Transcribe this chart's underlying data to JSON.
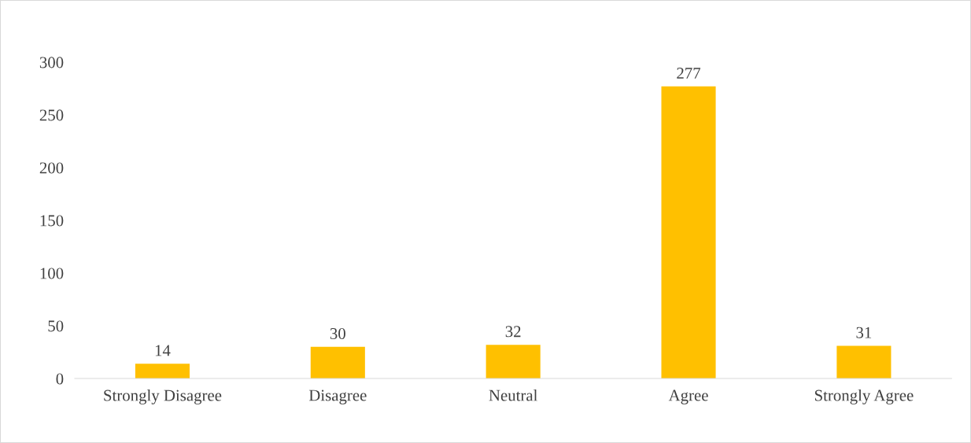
{
  "chart_data": {
    "type": "bar",
    "categories": [
      "Strongly Disagree",
      "Disagree",
      "Neutral",
      "Agree",
      "Strongly Agree"
    ],
    "values": [
      14,
      30,
      32,
      277,
      31
    ],
    "color": "#ffc000",
    "ylim": [
      0,
      300
    ],
    "yticks": [
      0,
      50,
      100,
      150,
      200,
      250,
      300
    ],
    "data_labels": true,
    "grid": false,
    "legend": false
  }
}
